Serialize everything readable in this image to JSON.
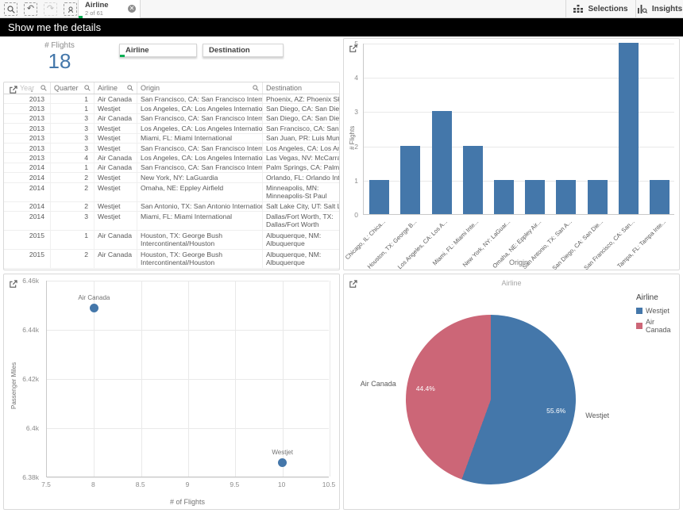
{
  "colors": {
    "accent_blue": "#4477aa",
    "accent_red": "#cc6677",
    "selection_green": "#0aaf54"
  },
  "toolbar": {
    "icons": [
      "smart-search",
      "undo",
      "redo",
      "selections-tool"
    ],
    "undo_glyph": "↶",
    "redo_glyph": "↷",
    "tab": {
      "title": "Airline",
      "subtitle": "2 of 61"
    },
    "selections_label": "Selections",
    "insights_label": "Insights"
  },
  "header": {
    "title": "Show me the details"
  },
  "kpi": {
    "label": "# Flights",
    "value": "18"
  },
  "filters": {
    "airline": "Airline",
    "destination": "Destination"
  },
  "table": {
    "headers": [
      "Year",
      "Quarter",
      "Airline",
      "Origin",
      "Destination"
    ],
    "rows": [
      {
        "year": "2013",
        "quarter": "1",
        "airline": "Air Canada",
        "origin": "San Francisco, CA: San Francisco International",
        "destination": "Phoenix, AZ: Phoenix Sky Harbor International",
        "tall": false
      },
      {
        "year": "2013",
        "quarter": "1",
        "airline": "Westjet",
        "origin": "Los Angeles, CA: Los Angeles International",
        "destination": "San Diego, CA: San Diego International",
        "tall": false
      },
      {
        "year": "2013",
        "quarter": "3",
        "airline": "Air Canada",
        "origin": "San Francisco, CA: San Francisco International",
        "destination": "San Diego, CA: San Diego International",
        "tall": false
      },
      {
        "year": "2013",
        "quarter": "3",
        "airline": "Westjet",
        "origin": "Los Angeles, CA: Los Angeles International",
        "destination": "San Francisco, CA: San Francisco International",
        "tall": false
      },
      {
        "year": "2013",
        "quarter": "3",
        "airline": "Westjet",
        "origin": "Miami, FL: Miami International",
        "destination": "San Juan, PR: Luis Munoz Marin International",
        "tall": false
      },
      {
        "year": "2013",
        "quarter": "3",
        "airline": "Westjet",
        "origin": "San Francisco, CA: San Francisco International",
        "destination": "Los Angeles, CA: Los Angeles International",
        "tall": false
      },
      {
        "year": "2013",
        "quarter": "4",
        "airline": "Air Canada",
        "origin": "Los Angeles, CA: Los Angeles International",
        "destination": "Las Vegas, NV: McCarran International",
        "tall": false
      },
      {
        "year": "2014",
        "quarter": "1",
        "airline": "Air Canada",
        "origin": "San Francisco, CA: San Francisco International",
        "destination": "Palm Springs, CA: Palm Springs International",
        "tall": false
      },
      {
        "year": "2014",
        "quarter": "2",
        "airline": "Westjet",
        "origin": "New York, NY: LaGuardia",
        "destination": "Orlando, FL: Orlando International",
        "tall": false
      },
      {
        "year": "2014",
        "quarter": "2",
        "airline": "Westjet",
        "origin": "Omaha, NE: Eppley Airfield",
        "destination": "Minneapolis, MN: Minneapolis-St Paul International",
        "tall": true
      },
      {
        "year": "2014",
        "quarter": "2",
        "airline": "Westjet",
        "origin": "San Antonio, TX: San Antonio International",
        "destination": "Salt Lake City, UT: Salt Lake City International",
        "tall": false
      },
      {
        "year": "2014",
        "quarter": "3",
        "airline": "Westjet",
        "origin": "Miami, FL: Miami International",
        "destination": "Dallas/Fort Worth, TX: Dallas/Fort Worth International",
        "tall": true
      },
      {
        "year": "2015",
        "quarter": "1",
        "airline": "Air Canada",
        "origin": "Houston, TX: George Bush Intercontinental/Houston",
        "destination": "Albuquerque, NM: Albuquerque International Sunport",
        "tall": true
      },
      {
        "year": "2015",
        "quarter": "2",
        "airline": "Air Canada",
        "origin": "Houston, TX: George Bush Intercontinental/Houston",
        "destination": "Albuquerque, NM: Albuquerque International Sunport",
        "tall": true
      }
    ]
  },
  "chart_data": [
    {
      "type": "bar",
      "categories": [
        "Chicago, IL: Chica...",
        "Houston, TX: George B...",
        "Los Angeles, CA: Los A...",
        "Miami, FL: Miami Inte...",
        "New York, NY: LaGuar...",
        "Omaha, NE: Eppley Air...",
        "San Antonio, TX: San A...",
        "San Diego, CA: San Die...",
        "San Francisco, CA: San...",
        "Tampa, FL: Tampa Inte..."
      ],
      "values": [
        1,
        2,
        3,
        2,
        1,
        1,
        1,
        1,
        5,
        1
      ],
      "xlabel": "Origin",
      "ylabel": "# Flights",
      "ylim": [
        0,
        5
      ],
      "bar_color": "#4477aa",
      "grid": true
    },
    {
      "type": "scatter",
      "xlabel": "# of Flights",
      "ylabel": "Passenger Miles",
      "xlim": [
        7.5,
        10.5
      ],
      "ylim": [
        6380,
        6460
      ],
      "xticks": [
        7.5,
        8,
        8.5,
        9,
        9.5,
        10,
        10.5
      ],
      "xtick_labels": [
        "7.5",
        "8",
        "8.5",
        "9",
        "9.5",
        "10",
        "10.5"
      ],
      "yticks": [
        6380,
        6400,
        6420,
        6440,
        6460
      ],
      "ytick_labels": [
        "6.38k",
        "6.4k",
        "6.42k",
        "6.44k",
        "6.46k"
      ],
      "points": [
        {
          "label": "Air Canada",
          "x": 8,
          "y": 6449
        },
        {
          "label": "Westjet",
          "x": 10,
          "y": 6386
        }
      ],
      "point_color": "#4477aa",
      "grid": true
    },
    {
      "type": "pie",
      "title": "Airline",
      "legend_title": "Airline",
      "legend_position": "top-right",
      "slices": [
        {
          "label": "Westjet",
          "value": 10,
          "pct_label": "55.6%",
          "color": "#4477aa"
        },
        {
          "label": "Air Canada",
          "value": 8,
          "pct_label": "44.4%",
          "color": "#cc6677"
        }
      ]
    }
  ]
}
